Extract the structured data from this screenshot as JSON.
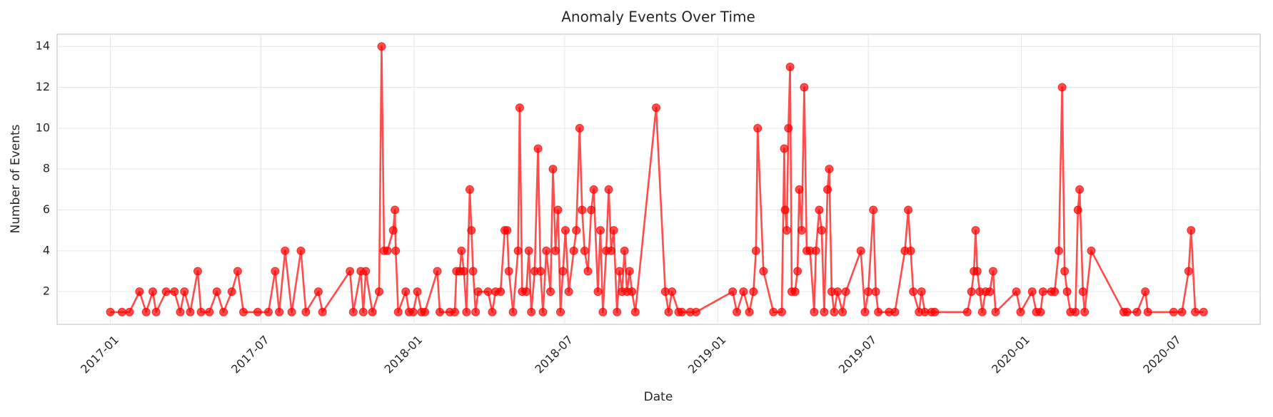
{
  "chart_data": {
    "type": "line",
    "title": "Anomaly Events Over Time",
    "x_label": "Date",
    "y_label": "Number of Events",
    "color": "#ff0000",
    "grid": true,
    "marker": "o",
    "x": [
      "2017-01-01",
      "2017-01-15",
      "2017-01-24",
      "2017-02-05",
      "2017-02-13",
      "2017-02-21",
      "2017-02-25",
      "2017-03-09",
      "2017-03-19",
      "2017-03-26",
      "2017-03-31",
      "2017-04-07",
      "2017-04-16",
      "2017-04-20",
      "2017-04-30",
      "2017-05-09",
      "2017-05-17",
      "2017-05-27",
      "2017-06-03",
      "2017-06-10",
      "2017-06-27",
      "2017-07-10",
      "2017-07-18",
      "2017-07-23",
      "2017-07-30",
      "2017-08-07",
      "2017-08-18",
      "2017-08-24",
      "2017-09-08",
      "2017-09-13",
      "2017-10-16",
      "2017-10-20",
      "2017-10-29",
      "2017-11-01",
      "2017-11-04",
      "2017-11-12",
      "2017-11-20",
      "2017-11-23",
      "2017-11-26",
      "2017-11-30",
      "2017-12-07",
      "2017-12-09",
      "2017-12-10",
      "2017-12-13",
      "2017-12-22",
      "2017-12-26",
      "2017-12-31",
      "2018-01-05",
      "2018-01-10",
      "2018-01-14",
      "2018-01-29",
      "2018-02-01",
      "2018-02-13",
      "2018-02-19",
      "2018-02-21",
      "2018-02-25",
      "2018-02-27",
      "2018-03-02",
      "2018-03-05",
      "2018-03-09",
      "2018-03-11",
      "2018-03-13",
      "2018-03-16",
      "2018-03-19",
      "2018-03-31",
      "2018-04-05",
      "2018-04-09",
      "2018-04-15",
      "2018-04-20",
      "2018-04-23",
      "2018-04-25",
      "2018-04-30",
      "2018-05-06",
      "2018-05-08",
      "2018-05-11",
      "2018-05-16",
      "2018-05-19",
      "2018-05-22",
      "2018-05-26",
      "2018-05-30",
      "2018-06-02",
      "2018-06-05",
      "2018-06-09",
      "2018-06-14",
      "2018-06-17",
      "2018-06-20",
      "2018-06-23",
      "2018-06-26",
      "2018-06-29",
      "2018-07-02",
      "2018-07-06",
      "2018-07-12",
      "2018-07-15",
      "2018-07-19",
      "2018-07-22",
      "2018-07-25",
      "2018-07-29",
      "2018-08-02",
      "2018-08-05",
      "2018-08-10",
      "2018-08-13",
      "2018-08-16",
      "2018-08-20",
      "2018-08-23",
      "2018-08-26",
      "2018-08-29",
      "2018-09-02",
      "2018-09-05",
      "2018-09-08",
      "2018-09-11",
      "2018-09-14",
      "2018-09-17",
      "2018-09-20",
      "2018-09-24",
      "2018-10-19",
      "2018-10-30",
      "2018-11-03",
      "2018-11-07",
      "2018-11-15",
      "2018-11-19",
      "2018-11-29",
      "2018-12-06",
      "2019-01-19",
      "2019-01-24",
      "2019-02-01",
      "2019-02-08",
      "2019-02-13",
      "2019-02-16",
      "2019-02-18",
      "2019-02-25",
      "2019-03-09",
      "2019-03-19",
      "2019-03-22",
      "2019-03-23",
      "2019-03-25",
      "2019-03-27",
      "2019-03-29",
      "2019-03-31",
      "2019-04-04",
      "2019-04-07",
      "2019-04-09",
      "2019-04-12",
      "2019-04-15",
      "2019-04-18",
      "2019-04-22",
      "2019-04-27",
      "2019-04-29",
      "2019-05-03",
      "2019-05-06",
      "2019-05-09",
      "2019-05-13",
      "2019-05-15",
      "2019-05-18",
      "2019-05-21",
      "2019-05-25",
      "2019-05-31",
      "2019-06-04",
      "2019-06-22",
      "2019-06-27",
      "2019-07-01",
      "2019-07-07",
      "2019-07-10",
      "2019-07-13",
      "2019-07-26",
      "2019-08-02",
      "2019-08-14",
      "2019-08-18",
      "2019-08-21",
      "2019-08-24",
      "2019-08-31",
      "2019-09-03",
      "2019-09-07",
      "2019-09-15",
      "2019-09-19",
      "2019-10-28",
      "2019-11-02",
      "2019-11-05",
      "2019-11-07",
      "2019-11-09",
      "2019-11-12",
      "2019-11-15",
      "2019-11-19",
      "2019-11-24",
      "2019-11-28",
      "2019-12-01",
      "2019-12-26",
      "2019-12-31",
      "2020-01-14",
      "2020-01-19",
      "2020-01-24",
      "2020-01-27",
      "2020-02-06",
      "2020-02-10",
      "2020-02-15",
      "2020-02-19",
      "2020-02-22",
      "2020-02-25",
      "2020-02-29",
      "2020-03-06",
      "2020-03-09",
      "2020-03-11",
      "2020-03-15",
      "2020-03-17",
      "2020-03-25",
      "2020-05-03",
      "2020-05-07",
      "2020-05-19",
      "2020-05-29",
      "2020-06-01",
      "2020-07-02",
      "2020-07-12",
      "2020-07-20",
      "2020-07-23",
      "2020-07-28",
      "2020-08-07"
    ],
    "values": [
      1,
      1,
      1,
      2,
      1,
      2,
      1,
      2,
      2,
      1,
      2,
      1,
      3,
      1,
      1,
      2,
      1,
      2,
      3,
      1,
      1,
      1,
      3,
      1,
      4,
      1,
      4,
      1,
      2,
      1,
      3,
      1,
      3,
      1,
      3,
      1,
      2,
      14,
      4,
      4,
      5,
      6,
      4,
      1,
      2,
      1,
      1,
      2,
      1,
      1,
      3,
      1,
      1,
      1,
      3,
      3,
      4,
      3,
      1,
      7,
      5,
      3,
      1,
      2,
      2,
      1,
      2,
      2,
      5,
      5,
      3,
      1,
      4,
      11,
      2,
      2,
      4,
      1,
      3,
      9,
      3,
      1,
      4,
      2,
      8,
      4,
      6,
      1,
      3,
      5,
      2,
      4,
      5,
      10,
      6,
      4,
      3,
      6,
      7,
      2,
      5,
      1,
      4,
      7,
      4,
      5,
      1,
      3,
      2,
      4,
      2,
      3,
      2,
      1,
      11,
      2,
      1,
      2,
      1,
      1,
      1,
      1,
      2,
      1,
      2,
      1,
      2,
      4,
      10,
      3,
      1,
      1,
      9,
      6,
      5,
      10,
      13,
      2,
      2,
      3,
      7,
      5,
      12,
      4,
      4,
      1,
      4,
      6,
      5,
      1,
      7,
      8,
      2,
      1,
      2,
      1,
      2,
      4,
      1,
      2,
      6,
      2,
      1,
      1,
      1,
      4,
      6,
      4,
      2,
      1,
      2,
      1,
      1,
      1,
      1,
      2,
      3,
      5,
      3,
      2,
      1,
      2,
      2,
      3,
      1,
      2,
      1,
      2,
      1,
      1,
      2,
      2,
      2,
      4,
      12,
      3,
      2,
      1,
      1,
      6,
      7,
      2,
      1,
      4,
      1,
      1,
      1,
      2,
      1,
      1,
      1,
      3,
      5,
      1,
      1
    ],
    "xlim": [
      "2016-10-29",
      "2020-10-14"
    ],
    "xticks": [
      "2017-01",
      "2017-07",
      "2018-01",
      "2018-07",
      "2019-01",
      "2019-07",
      "2020-01",
      "2020-07"
    ],
    "ylim": [
      0.4,
      14.6
    ],
    "yticks": [
      2,
      4,
      6,
      8,
      10,
      12,
      14
    ]
  }
}
